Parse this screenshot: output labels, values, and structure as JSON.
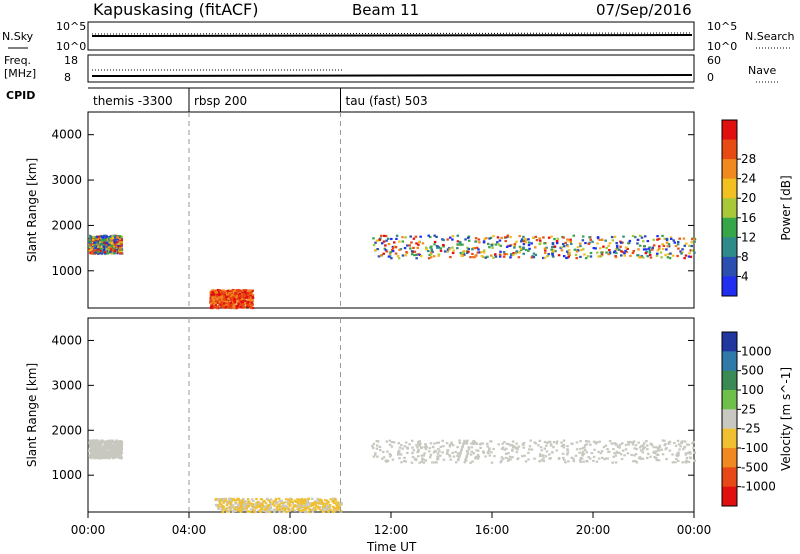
{
  "header": {
    "station": "Kapuskasing (fitACF)",
    "beam": "Beam 11",
    "date": "07/Sep/2016"
  },
  "noise_panel": {
    "left_label": "N.Sky",
    "right_label": "N.Search",
    "left_ticks": [
      "10^5",
      "10^0"
    ],
    "right_ticks": [
      "10^5",
      "10^0"
    ]
  },
  "freq_panel": {
    "left_label_1": "Freq.",
    "left_label_2": "[MHz]",
    "right_label": "Nave",
    "left_ticks": [
      "18",
      "8"
    ],
    "right_ticks": [
      "60",
      "0"
    ]
  },
  "cpid": {
    "label": "CPID",
    "segments": [
      {
        "text": "themis -3300",
        "start_hour": 0,
        "end_hour": 4
      },
      {
        "text": "rbsp 200",
        "start_hour": 4,
        "end_hour": 10
      },
      {
        "text": "tau (fast) 503",
        "start_hour": 10,
        "end_hour": 24
      }
    ]
  },
  "chart_data": [
    {
      "type": "heatmap",
      "name": "Power",
      "ylabel": "Slant Range [km]",
      "colorbar_label": "Power [dB]",
      "yticks": [
        1000,
        2000,
        3000,
        4000
      ],
      "ylim": [
        180,
        4500
      ],
      "xlim": [
        0,
        24
      ],
      "colorbar_ticks": [
        "4",
        "8",
        "12",
        "16",
        "20",
        "24",
        "28"
      ],
      "colors": [
        "#1f2ef0",
        "#2a4fb0",
        "#2f8a8a",
        "#36a64a",
        "#a8c83a",
        "#f2c020",
        "#f08a1e",
        "#e84a14",
        "#e01010"
      ],
      "dominant_regions": [
        {
          "hours": [
            0,
            1.3
          ],
          "range_km": [
            1400,
            1800
          ],
          "level": "12-20 dB"
        },
        {
          "hours": [
            4.8,
            6.5
          ],
          "range_km": [
            200,
            600
          ],
          "level": "24-30 dB"
        },
        {
          "hours": [
            11.2,
            24
          ],
          "range_km": [
            1300,
            1800
          ],
          "level": "8-28 dB"
        }
      ]
    },
    {
      "type": "heatmap",
      "name": "Velocity",
      "xlabel": "Time UT",
      "ylabel": "Slant Range [km]",
      "colorbar_label": "Velocity [m s^-1]",
      "yticks": [
        1000,
        2000,
        3000,
        4000
      ],
      "ylim": [
        180,
        4500
      ],
      "xlim": [
        0,
        24
      ],
      "xticks": [
        "00:00",
        "04:00",
        "08:00",
        "12:00",
        "16:00",
        "20:00",
        "00:00"
      ],
      "colorbar_ticks": [
        "1000",
        "500",
        "100",
        "25",
        "-25",
        "-100",
        "-500",
        "-1000"
      ],
      "colors": [
        "#2236a0",
        "#2f7aa8",
        "#3a8a55",
        "#6fc04a",
        "#c8c8c0",
        "#f0c030",
        "#f08a20",
        "#e84818",
        "#e01010"
      ],
      "dominant_regions": [
        {
          "hours": [
            0,
            1.3
          ],
          "range_km": [
            1400,
            1800
          ],
          "level": "ground scatter"
        },
        {
          "hours": [
            11.2,
            24
          ],
          "range_km": [
            1300,
            1800
          ],
          "level": "ground scatter"
        },
        {
          "hours": [
            5,
            10
          ],
          "range_km": [
            200,
            500
          ],
          "level": "-25 to -100"
        }
      ]
    }
  ]
}
